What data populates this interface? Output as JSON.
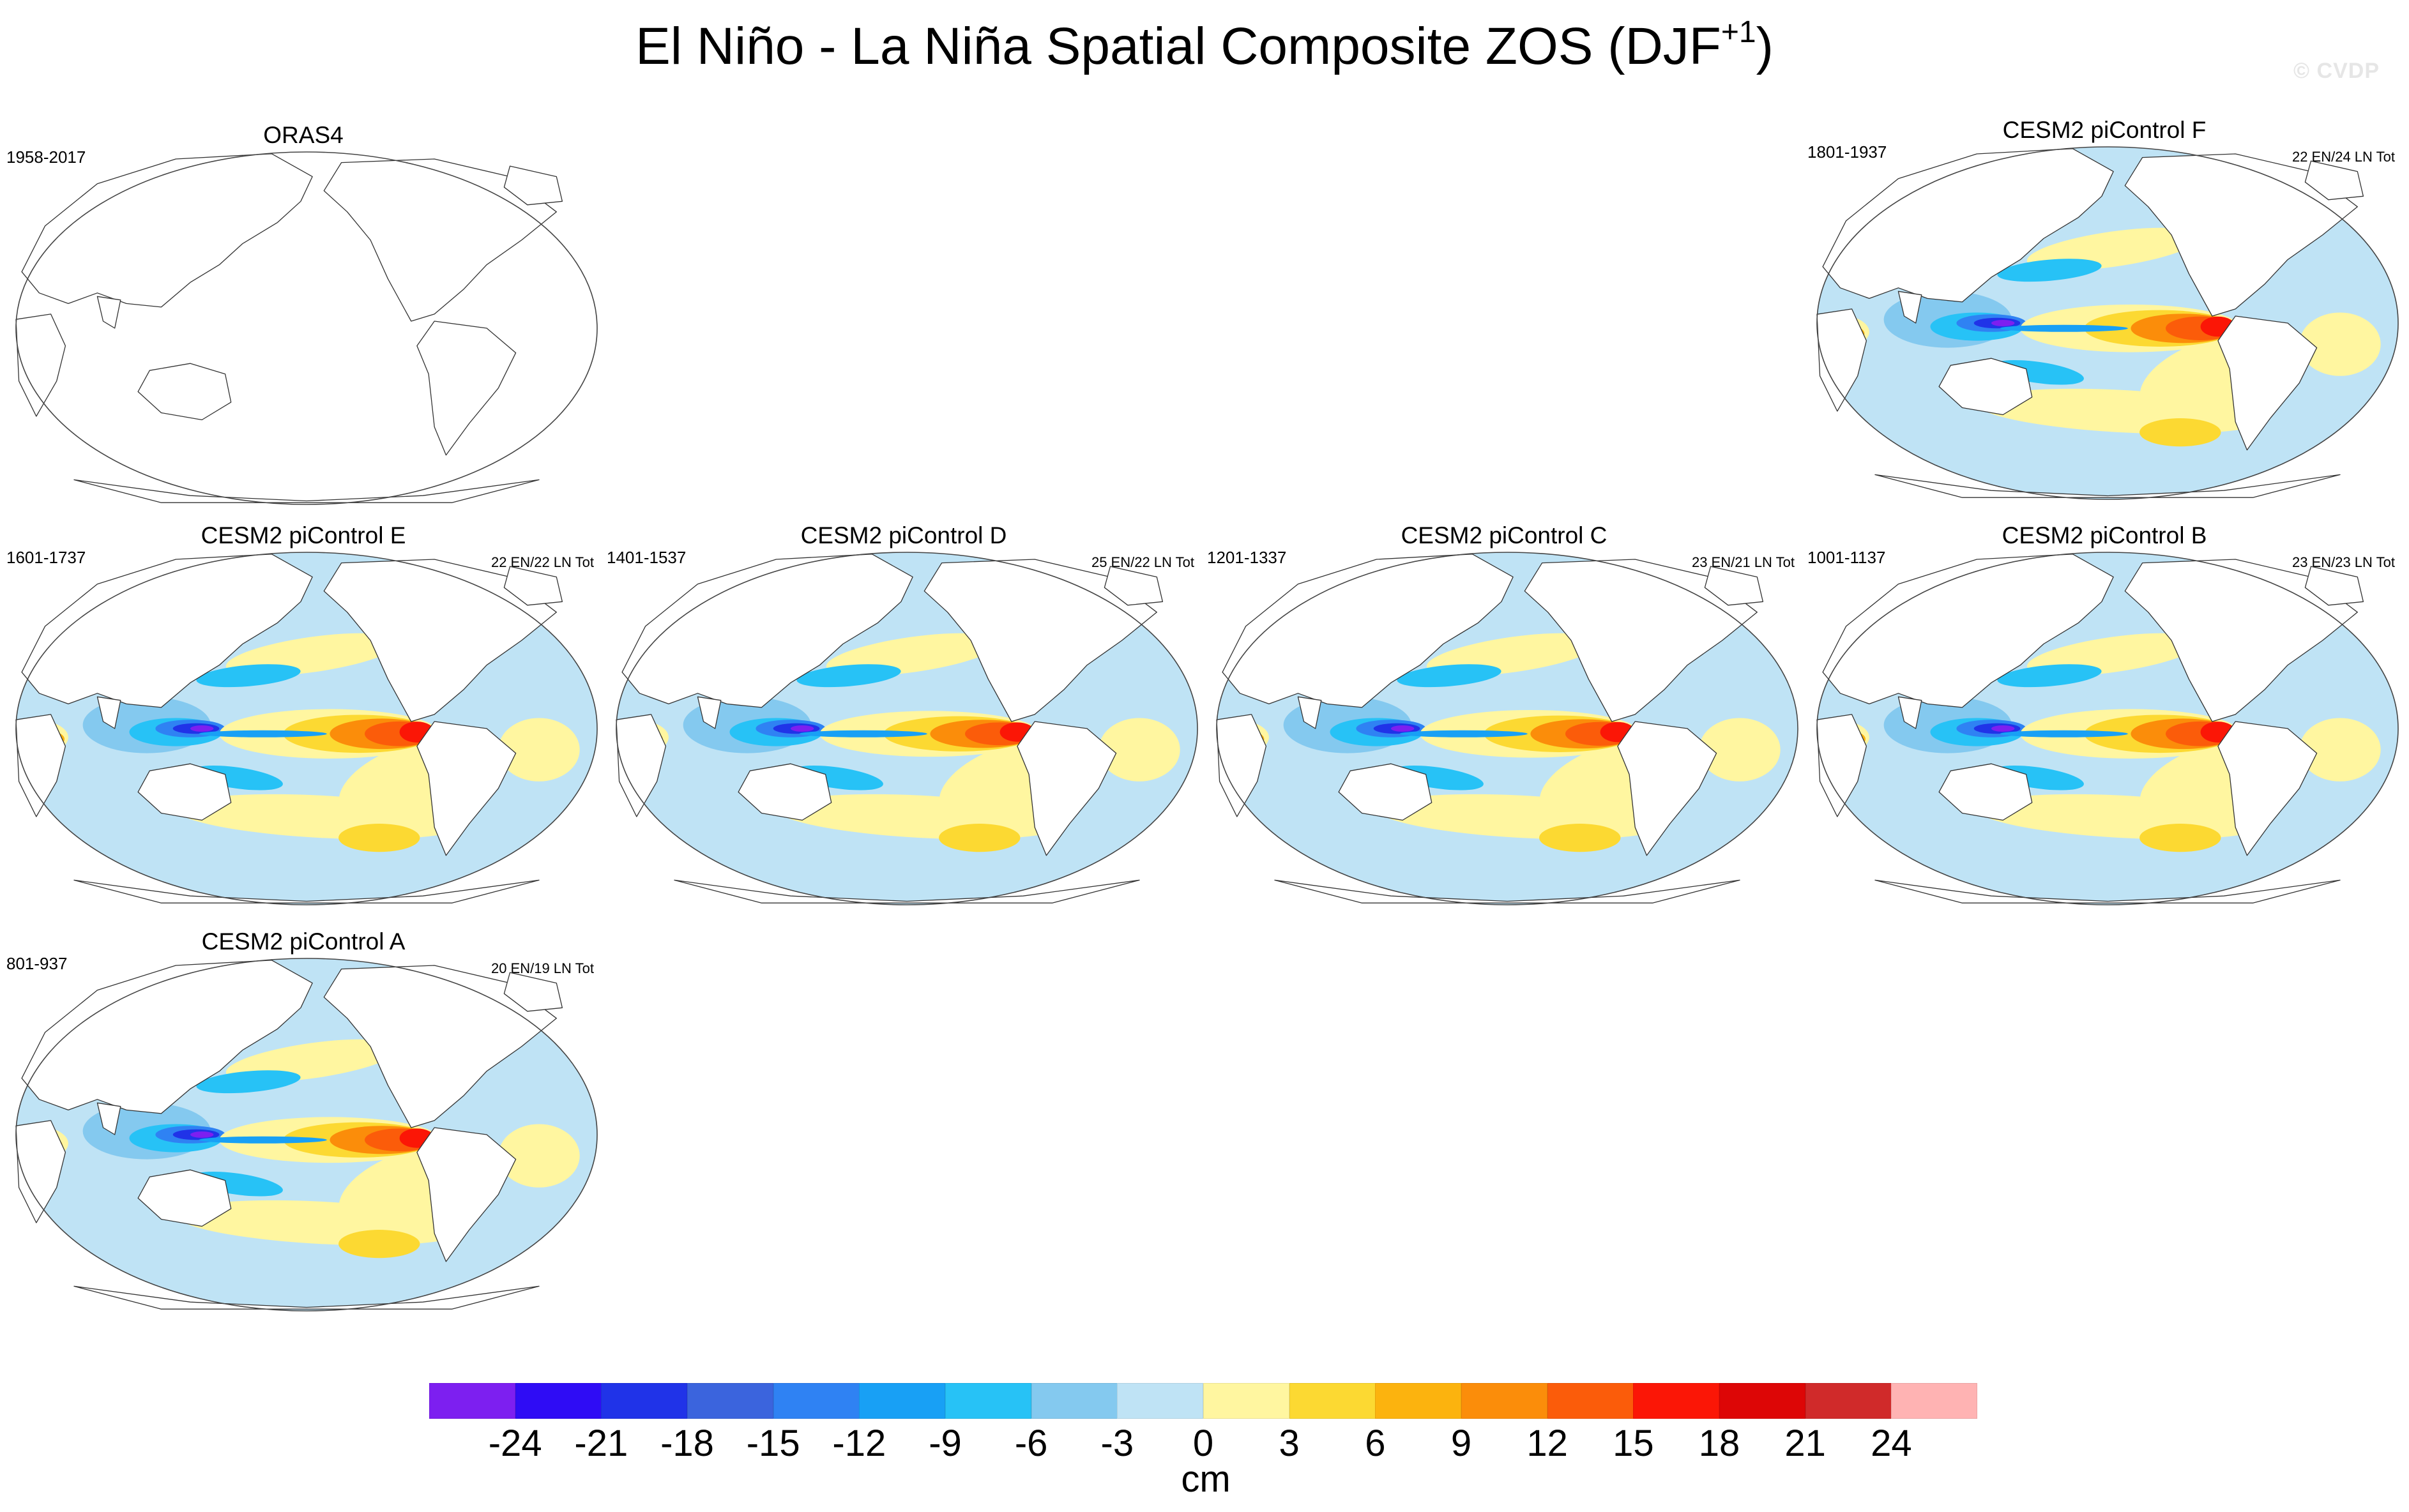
{
  "title": "El Niño - La Niña Spatial Composite ZOS (DJF",
  "title_superscript": "+1",
  "title_suffix": ")",
  "watermark": "© CVDP",
  "panels": [
    {
      "title": "ORAS4",
      "period": "1958-2017",
      "count": "",
      "has_data": false
    },
    {
      "title": "CESM2 piControl F",
      "period": "1801-1937",
      "count": "22 EN/24 LN Tot",
      "has_data": true
    },
    {
      "title": "CESM2 piControl E",
      "period": "1601-1737",
      "count": "22 EN/22 LN Tot",
      "has_data": true
    },
    {
      "title": "CESM2 piControl D",
      "period": "1401-1537",
      "count": "25 EN/22 LN Tot",
      "has_data": true
    },
    {
      "title": "CESM2 piControl C",
      "period": "1201-1337",
      "count": "23 EN/21 LN Tot",
      "has_data": true
    },
    {
      "title": "CESM2 piControl B",
      "period": "1001-1137",
      "count": "23 EN/23 LN Tot",
      "has_data": true
    },
    {
      "title": "CESM2 piControl A",
      "period": "801-937",
      "count": "20 EN/19 LN Tot",
      "has_data": true
    }
  ],
  "colorbar": {
    "labels": [
      "-24",
      "-21",
      "-18",
      "-15",
      "-12",
      "-9",
      "-6",
      "-3",
      "0",
      "3",
      "6",
      "9",
      "12",
      "15",
      "18",
      "21",
      "24"
    ],
    "colors": [
      "#7d1ff0",
      "#2f0cf5",
      "#2033e8",
      "#3b64dd",
      "#2f82f3",
      "#18a0f5",
      "#27c2f6",
      "#84c9ef",
      "#bfe3f5",
      "#fff6a0",
      "#fcd932",
      "#fcb30e",
      "#fb8d0a",
      "#fb5c0a",
      "#fb1606",
      "#dd0606",
      "#d02a2a",
      "#ffb3b3"
    ],
    "units": "cm"
  }
}
